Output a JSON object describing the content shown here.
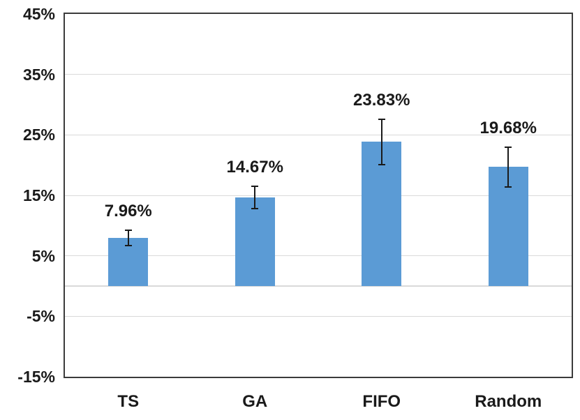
{
  "chart_data": {
    "type": "bar",
    "title": "",
    "xlabel": "",
    "ylabel": "",
    "categories": [
      "TS",
      "GA",
      "FIFO",
      "Random"
    ],
    "values": [
      7.96,
      14.67,
      23.83,
      19.68
    ],
    "value_labels": [
      "7.96%",
      "14.67%",
      "23.83%",
      "19.68%"
    ],
    "errors": [
      1.4,
      2.0,
      3.9,
      3.4
    ],
    "ylim": [
      -15,
      45
    ],
    "ytick_step": 10,
    "yticks": [
      45,
      35,
      25,
      15,
      5,
      -5,
      -15
    ],
    "ytick_labels": [
      "45%",
      "35%",
      "25%",
      "15%",
      "5%",
      "-5%",
      "-15%"
    ],
    "grid": true,
    "legend": "none",
    "bar_color": "#5B9BD5",
    "error_bar_color": "#1a1a1a",
    "gridline_color": "#d9d9d9",
    "axis_frame_color": "#3b3b3b",
    "label_color": "#1a1a1a"
  }
}
